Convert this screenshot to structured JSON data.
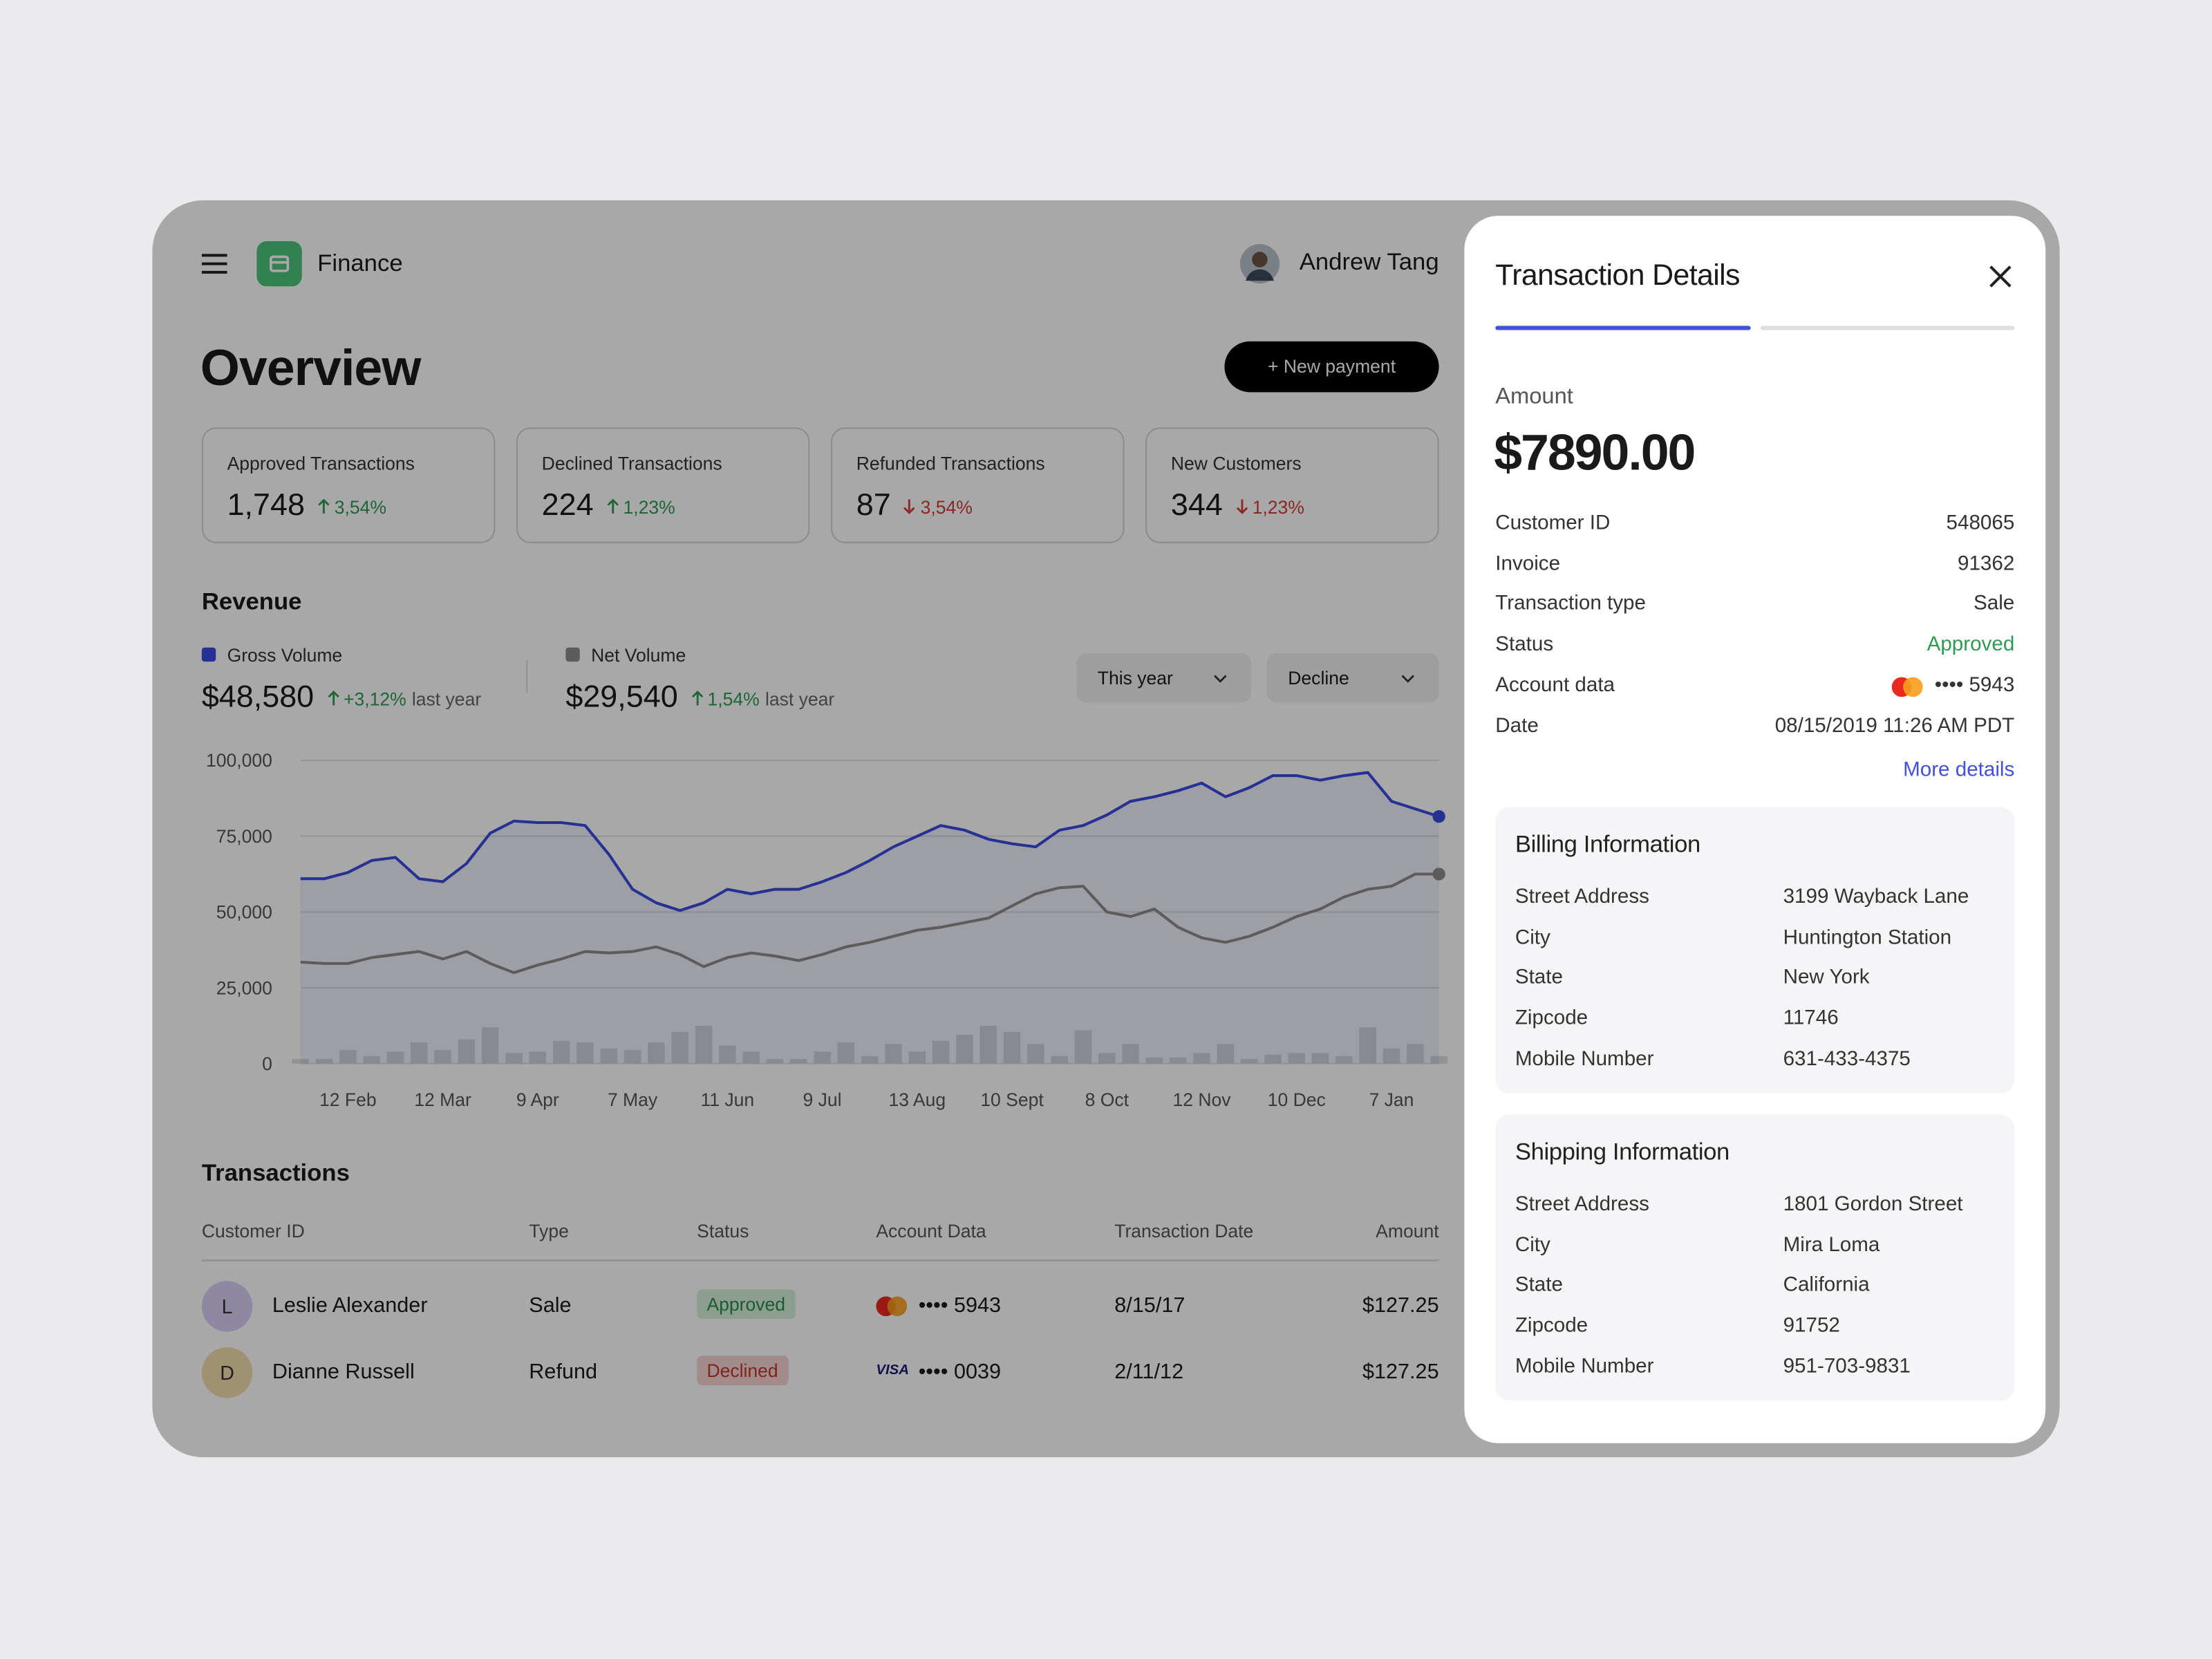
{
  "app": {
    "name": "Finance",
    "user": "Andrew Tang"
  },
  "overview": {
    "title": "Overview",
    "new_payment": "+ New payment",
    "stats": [
      {
        "label": "Approved Transactions",
        "value": "1,748",
        "change": "3,54%",
        "trend": "up"
      },
      {
        "label": "Declined Transactions",
        "value": "224",
        "change": "1,23%",
        "trend": "up"
      },
      {
        "label": "Refunded Transactions",
        "value": "87",
        "change": "3,54%",
        "trend": "down"
      },
      {
        "label": "New Customers",
        "value": "344",
        "change": "1,23%",
        "trend": "down"
      }
    ]
  },
  "revenue": {
    "title": "Revenue",
    "summaries": [
      {
        "amount": "$48,580",
        "change": "+3,12%",
        "note": "last year",
        "trend": "up"
      },
      {
        "amount": "$29,540",
        "change": "1,54%",
        "note": "last year",
        "trend": "up"
      }
    ],
    "filters": [
      "This year",
      "Decline"
    ]
  },
  "chart_data": {
    "type": "line",
    "categories": [
      null,
      null,
      "12 Feb",
      null,
      null,
      null,
      "12 Mar",
      null,
      null,
      null,
      "9 Apr",
      null,
      null,
      null,
      "7 May",
      null,
      null,
      null,
      "11 Jun",
      null,
      null,
      null,
      "9 Jul",
      null,
      null,
      null,
      "13 Aug",
      null,
      null,
      null,
      "10 Sept",
      null,
      null,
      null,
      "8 Oct",
      null,
      null,
      null,
      "12 Nov",
      null,
      null,
      null,
      "10 Dec",
      null,
      null,
      null,
      "7 Jan",
      null,
      null
    ],
    "series": [
      {
        "name": "Gross Volume",
        "color": "#3b4bdf",
        "area": true,
        "end_marker": true,
        "values": [
          61000,
          61000,
          63000,
          67000,
          68000,
          61000,
          60000,
          66000,
          76000,
          80000,
          79500,
          79500,
          78500,
          69000,
          57500,
          53000,
          50500,
          53000,
          57500,
          56000,
          57500,
          57500,
          60000,
          63000,
          67000,
          71500,
          75000,
          78500,
          77000,
          74000,
          72500,
          71500,
          77000,
          78500,
          82000,
          86500,
          88000,
          90000,
          92500,
          88000,
          91000,
          95000,
          95000,
          93500,
          95000,
          96000,
          86500,
          84000,
          81500
        ]
      },
      {
        "name": "Net Volume",
        "color": "#8c8c8c",
        "end_marker": true,
        "values": [
          33500,
          33000,
          33000,
          35000,
          36000,
          37000,
          34500,
          37000,
          33000,
          30000,
          32500,
          34500,
          37000,
          36500,
          37000,
          38500,
          36000,
          32000,
          35000,
          36500,
          35500,
          34000,
          36000,
          38500,
          40000,
          42000,
          44000,
          45000,
          46500,
          48000,
          52000,
          56000,
          58000,
          58500,
          50000,
          48500,
          51000,
          45000,
          41500,
          40000,
          42000,
          45000,
          48500,
          51000,
          55000,
          57500,
          58500,
          62500,
          62500
        ]
      },
      {
        "type": "bar",
        "color": "#dedede",
        "values": [
          1500,
          1500,
          4500,
          2500,
          4000,
          7000,
          4500,
          8000,
          12000,
          3500,
          4000,
          7500,
          7000,
          5000,
          4500,
          7000,
          10500,
          12500,
          6000,
          4000,
          1500,
          1500,
          4000,
          7000,
          2500,
          6500,
          4000,
          7500,
          9500,
          12500,
          10500,
          6500,
          2500,
          11000,
          3500,
          6500,
          2000,
          2000,
          3500,
          6500,
          1500,
          3000,
          3500,
          3500,
          2500,
          12000,
          5000,
          6500,
          2500
        ]
      }
    ],
    "ylim": [
      0,
      100000
    ],
    "yticks": [
      0,
      {
        "value": 25000,
        "label": "25,000"
      },
      {
        "value": 50000,
        "label": "50,000"
      },
      {
        "value": 75000,
        "label": "75,000"
      },
      {
        "value": 100000,
        "label": "100,000"
      }
    ],
    "grid": true
  },
  "transactions": {
    "title": "Transactions",
    "columns": [
      "Customer ID",
      "Type",
      "Status",
      "Account Data",
      "Transaction Date",
      "Amount"
    ],
    "rows": [
      {
        "initial": "L",
        "name": "Leslie Alexander",
        "type": "Sale",
        "status": "Approved",
        "tone": "positive",
        "card": {
          "brand": "mastercard"
        },
        "account": "•••• 5943",
        "date": "8/15/17",
        "amount": "$127.25"
      },
      {
        "initial": "D",
        "name": "Dianne Russell",
        "type": "Refund",
        "status": "Declined",
        "tone": "negative",
        "card": {
          "brand": "visa",
          "logo": "VISA"
        },
        "account": "•••• 0039",
        "date": "2/11/12",
        "amount": "$127.25"
      }
    ]
  },
  "details": {
    "title": "Transaction Details",
    "amount_label": "Amount",
    "amount": "$7890.00",
    "fields": [
      {
        "label": "Customer ID",
        "value": "548065"
      },
      {
        "label": "Invoice",
        "value": "91362"
      },
      {
        "label": "Transaction type",
        "value": "Sale"
      },
      {
        "label": "Status",
        "value": "Approved",
        "tone": "positive"
      },
      {
        "label": "Account data",
        "value": "•••• 5943",
        "card": "mastercard"
      },
      {
        "label": "Date",
        "value": "08/15/2019 11:26 AM PDT"
      }
    ],
    "more": "More details",
    "sections": [
      {
        "title": "Billing Information",
        "fields": [
          {
            "label": "Street Address",
            "value": "3199 Wayback Lane"
          },
          {
            "label": "City",
            "value": "Huntington Station"
          },
          {
            "label": "State",
            "value": "New York"
          },
          {
            "label": "Zipcode",
            "value": "11746"
          },
          {
            "label": "Mobile Number",
            "value": "631-433-4375"
          }
        ]
      },
      {
        "title": "Shipping Information",
        "fields": [
          {
            "label": "Street Address",
            "value": "1801 Gordon Street"
          },
          {
            "label": "City",
            "value": "Mira Loma"
          },
          {
            "label": "State",
            "value": "California"
          },
          {
            "label": "Zipcode",
            "value": "91752"
          },
          {
            "label": "Mobile Number",
            "value": "951-703-9831"
          }
        ]
      }
    ]
  }
}
